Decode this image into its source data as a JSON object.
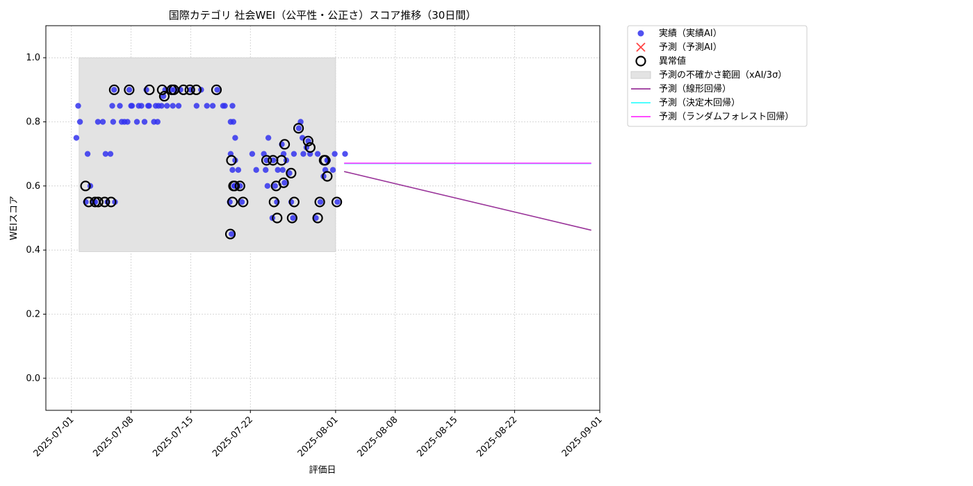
{
  "chart_data": {
    "type": "scatter",
    "title": "国際カテゴリ 社会WEI（公平性・公正さ）スコア推移（30日間）",
    "xlabel": "評価日",
    "ylabel": "WEIスコア",
    "xlim": [
      "2025-06-28",
      "2025-09-01"
    ],
    "ylim": [
      -0.1,
      1.1
    ],
    "yticks": [
      "0.0",
      "0.2",
      "0.4",
      "0.6",
      "0.8",
      "1.0"
    ],
    "xticks": [
      "2025-07-01",
      "2025-07-08",
      "2025-07-15",
      "2025-07-22",
      "2025-08-01",
      "2025-08-08",
      "2025-08-15",
      "2025-08-22",
      "2025-09-01"
    ],
    "grid": true,
    "legend_position": "outside-top-right",
    "colors": {
      "actual": "#3333ee",
      "predicted_ai": "#ff4444",
      "anomaly": "#000000",
      "band": "#e3e3e3",
      "linear": "#993399",
      "tree": "#33ffff",
      "forest": "#ff33ff"
    },
    "legend": [
      {
        "key": "actual",
        "label": "実績（実績AI）"
      },
      {
        "key": "predicted_ai",
        "label": "予測（予測AI）"
      },
      {
        "key": "anomaly",
        "label": "異常値"
      },
      {
        "key": "band",
        "label": "予測の不確かさ範囲（xAI/3σ）"
      },
      {
        "key": "linear",
        "label": "予測（線形回帰）"
      },
      {
        "key": "tree",
        "label": "予測（決定木回帰）"
      },
      {
        "key": "forest",
        "label": "予測（ランダムフォレスト回帰）"
      }
    ],
    "uncertainty_band": {
      "x": [
        "2025-07-01",
        "2025-08-01"
      ],
      "y": [
        0.395,
        1.0
      ]
    },
    "actual_points": [
      [
        "2025-07-01",
        0.75
      ],
      [
        "2025-07-01",
        0.85
      ],
      [
        "2025-07-01",
        0.8
      ],
      [
        "2025-07-02",
        0.6
      ],
      [
        "2025-07-02",
        0.55
      ],
      [
        "2025-07-02",
        0.7
      ],
      [
        "2025-07-03",
        0.8
      ],
      [
        "2025-07-03",
        0.55
      ],
      [
        "2025-07-03",
        0.55
      ],
      [
        "2025-07-04",
        0.7
      ],
      [
        "2025-07-04",
        0.55
      ],
      [
        "2025-07-04",
        0.8
      ],
      [
        "2025-07-05",
        0.8
      ],
      [
        "2025-07-05",
        0.55
      ],
      [
        "2025-07-05",
        0.7
      ],
      [
        "2025-07-05",
        0.85
      ],
      [
        "2025-07-05",
        0.9
      ],
      [
        "2025-07-06",
        0.8
      ],
      [
        "2025-07-06",
        0.85
      ],
      [
        "2025-07-06",
        0.8
      ],
      [
        "2025-07-07",
        0.85
      ],
      [
        "2025-07-07",
        0.8
      ],
      [
        "2025-07-07",
        0.9
      ],
      [
        "2025-07-07",
        0.85
      ],
      [
        "2025-07-08",
        0.85
      ],
      [
        "2025-07-08",
        0.8
      ],
      [
        "2025-07-08",
        0.85
      ],
      [
        "2025-07-09",
        0.85
      ],
      [
        "2025-07-09",
        0.8
      ],
      [
        "2025-07-09",
        0.9
      ],
      [
        "2025-07-09",
        0.85
      ],
      [
        "2025-07-10",
        0.85
      ],
      [
        "2025-07-10",
        0.8
      ],
      [
        "2025-07-10",
        0.85
      ],
      [
        "2025-07-10",
        0.8
      ],
      [
        "2025-07-11",
        0.85
      ],
      [
        "2025-07-11",
        0.88
      ],
      [
        "2025-07-11",
        0.9
      ],
      [
        "2025-07-11",
        0.85
      ],
      [
        "2025-07-12",
        0.9
      ],
      [
        "2025-07-12",
        0.85
      ],
      [
        "2025-07-12",
        0.9
      ],
      [
        "2025-07-13",
        0.85
      ],
      [
        "2025-07-13",
        0.9
      ],
      [
        "2025-07-14",
        0.9
      ],
      [
        "2025-07-15",
        0.9
      ],
      [
        "2025-07-15",
        0.85
      ],
      [
        "2025-07-16",
        0.85
      ],
      [
        "2025-07-17",
        0.9
      ],
      [
        "2025-07-17",
        0.85
      ],
      [
        "2025-07-18",
        0.85
      ],
      [
        "2025-07-18",
        0.85
      ],
      [
        "2025-07-19",
        0.68
      ],
      [
        "2025-07-19",
        0.8
      ],
      [
        "2025-07-19",
        0.85
      ],
      [
        "2025-07-19",
        0.6
      ],
      [
        "2025-07-19",
        0.55
      ],
      [
        "2025-07-19",
        0.45
      ],
      [
        "2025-07-19",
        0.8
      ],
      [
        "2025-07-19",
        0.75
      ],
      [
        "2025-07-19",
        0.7
      ],
      [
        "2025-07-19",
        0.65
      ],
      [
        "2025-07-19",
        0.6
      ],
      [
        "2025-07-20",
        0.65
      ],
      [
        "2025-07-20",
        0.6
      ],
      [
        "2025-07-20",
        0.55
      ],
      [
        "2025-07-21",
        0.7
      ],
      [
        "2025-07-22",
        0.65
      ],
      [
        "2025-07-23",
        0.68
      ],
      [
        "2025-07-23",
        0.75
      ],
      [
        "2025-07-23",
        0.7
      ],
      [
        "2025-07-23",
        0.65
      ],
      [
        "2025-07-23",
        0.6
      ],
      [
        "2025-07-24",
        0.65
      ],
      [
        "2025-07-24",
        0.68
      ],
      [
        "2025-07-24",
        0.6
      ],
      [
        "2025-07-24",
        0.55
      ],
      [
        "2025-07-24",
        0.5
      ],
      [
        "2025-07-25",
        0.65
      ],
      [
        "2025-07-25",
        0.61
      ],
      [
        "2025-07-25",
        0.68
      ],
      [
        "2025-07-25",
        0.73
      ],
      [
        "2025-07-25",
        0.7
      ],
      [
        "2025-07-26",
        0.7
      ],
      [
        "2025-07-26",
        0.64
      ],
      [
        "2025-07-26",
        0.55
      ],
      [
        "2025-07-26",
        0.5
      ],
      [
        "2025-07-27",
        0.7
      ],
      [
        "2025-07-27",
        0.78
      ],
      [
        "2025-07-27",
        0.8
      ],
      [
        "2025-07-27",
        0.75
      ],
      [
        "2025-07-28",
        0.72
      ],
      [
        "2025-07-28",
        0.74
      ],
      [
        "2025-07-28",
        0.7
      ],
      [
        "2025-07-29",
        0.55
      ],
      [
        "2025-07-29",
        0.5
      ],
      [
        "2025-07-29",
        0.7
      ],
      [
        "2025-07-30",
        0.68
      ],
      [
        "2025-07-30",
        0.63
      ],
      [
        "2025-07-30",
        0.65
      ],
      [
        "2025-07-30",
        0.68
      ],
      [
        "2025-07-31",
        0.55
      ],
      [
        "2025-07-31",
        0.65
      ],
      [
        "2025-07-31",
        0.7
      ],
      [
        "2025-08-01",
        0.7
      ]
    ],
    "anomaly_points": [
      [
        "2025-07-02",
        0.6
      ],
      [
        "2025-07-02",
        0.55
      ],
      [
        "2025-07-03",
        0.55
      ],
      [
        "2025-07-03",
        0.55
      ],
      [
        "2025-07-04",
        0.55
      ],
      [
        "2025-07-05",
        0.55
      ],
      [
        "2025-07-05",
        0.9
      ],
      [
        "2025-07-07",
        0.9
      ],
      [
        "2025-07-09",
        0.9
      ],
      [
        "2025-07-11",
        0.88
      ],
      [
        "2025-07-11",
        0.9
      ],
      [
        "2025-07-12",
        0.9
      ],
      [
        "2025-07-12",
        0.9
      ],
      [
        "2025-07-13",
        0.9
      ],
      [
        "2025-07-14",
        0.9
      ],
      [
        "2025-07-15",
        0.9
      ],
      [
        "2025-07-17",
        0.9
      ],
      [
        "2025-07-19",
        0.68
      ],
      [
        "2025-07-19",
        0.6
      ],
      [
        "2025-07-19",
        0.55
      ],
      [
        "2025-07-19",
        0.45
      ],
      [
        "2025-07-19",
        0.6
      ],
      [
        "2025-07-20",
        0.6
      ],
      [
        "2025-07-20",
        0.55
      ],
      [
        "2025-07-23",
        0.68
      ],
      [
        "2025-07-24",
        0.68
      ],
      [
        "2025-07-24",
        0.6
      ],
      [
        "2025-07-24",
        0.55
      ],
      [
        "2025-07-24",
        0.5
      ],
      [
        "2025-07-25",
        0.61
      ],
      [
        "2025-07-25",
        0.68
      ],
      [
        "2025-07-25",
        0.73
      ],
      [
        "2025-07-26",
        0.64
      ],
      [
        "2025-07-26",
        0.55
      ],
      [
        "2025-07-26",
        0.5
      ],
      [
        "2025-07-27",
        0.78
      ],
      [
        "2025-07-28",
        0.72
      ],
      [
        "2025-07-28",
        0.74
      ],
      [
        "2025-07-29",
        0.55
      ],
      [
        "2025-07-29",
        0.5
      ],
      [
        "2025-07-30",
        0.68
      ],
      [
        "2025-07-30",
        0.63
      ],
      [
        "2025-07-30",
        0.68
      ],
      [
        "2025-07-31",
        0.55
      ]
    ],
    "lines": [
      {
        "key": "linear",
        "x": [
          "2025-08-02",
          "2025-08-31"
        ],
        "y": [
          0.645,
          0.462
        ]
      },
      {
        "key": "tree",
        "x": [
          "2025-08-02",
          "2025-08-31"
        ],
        "y": [
          0.67,
          0.67
        ]
      },
      {
        "key": "forest",
        "x": [
          "2025-08-02",
          "2025-08-31"
        ],
        "y": [
          0.671,
          0.671
        ]
      }
    ]
  }
}
